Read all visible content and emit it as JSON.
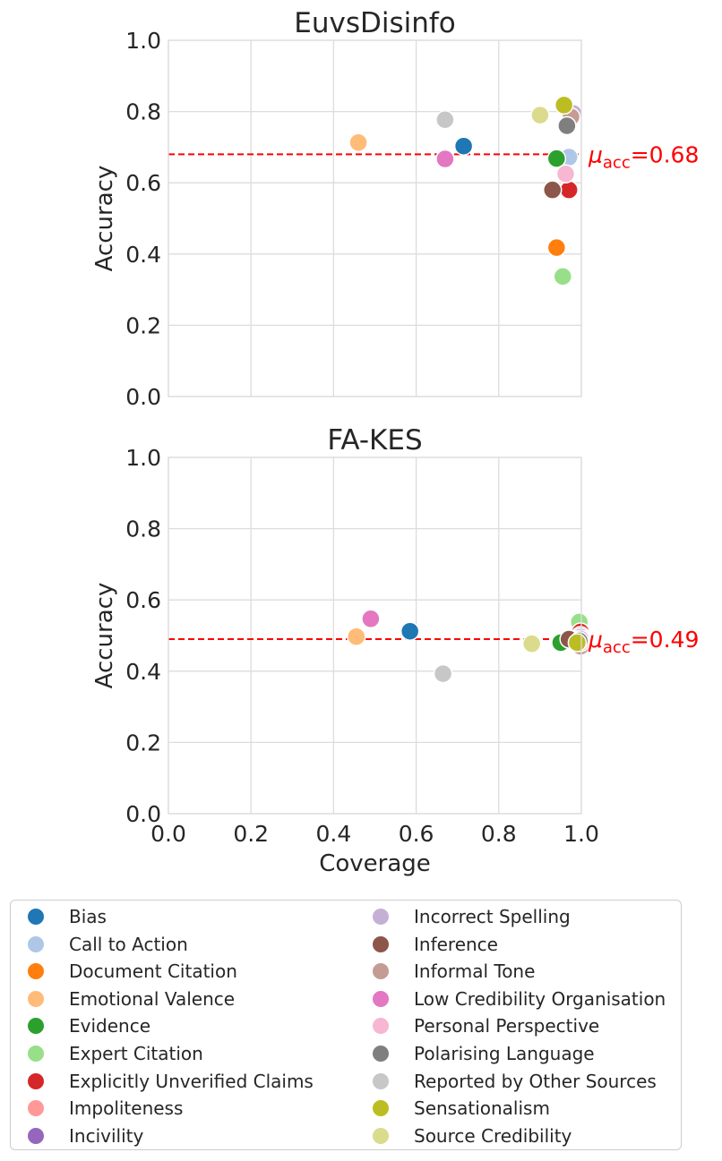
{
  "chart_data": [
    {
      "type": "scatter",
      "title": "EuvsDisinfo",
      "xlabel": "",
      "ylabel": "Accuracy",
      "xlim": [
        0.0,
        1.0
      ],
      "ylim": [
        0.0,
        1.0
      ],
      "yticks": [
        "0.0",
        "0.2",
        "0.4",
        "0.6",
        "0.8",
        "1.0"
      ],
      "xticks": [],
      "grid": true,
      "mean_line": {
        "value": 0.68,
        "label_prefix": "μ",
        "label_sub": "acc",
        "label_value": "=0.68",
        "color": "#ff0000"
      },
      "series": [
        {
          "name": "Bias",
          "x": 0.715,
          "y": 0.703
        },
        {
          "name": "Call to Action",
          "x": 0.97,
          "y": 0.672
        },
        {
          "name": "Document Citation",
          "x": 0.94,
          "y": 0.418
        },
        {
          "name": "Emotional Valence",
          "x": 0.46,
          "y": 0.713
        },
        {
          "name": "Evidence",
          "x": 0.94,
          "y": 0.668
        },
        {
          "name": "Expert Citation",
          "x": 0.955,
          "y": 0.337
        },
        {
          "name": "Explicitly Unverified Claims",
          "x": 0.97,
          "y": 0.58
        },
        {
          "name": "Impoliteness",
          "x": 0.98,
          "y": 0.79
        },
        {
          "name": "Incivility",
          "x": 0.975,
          "y": 0.78
        },
        {
          "name": "Incorrect Spelling",
          "x": 0.98,
          "y": 0.795
        },
        {
          "name": "Inference",
          "x": 0.93,
          "y": 0.58
        },
        {
          "name": "Informal Tone",
          "x": 0.975,
          "y": 0.785
        },
        {
          "name": "Low Credibility Organisation",
          "x": 0.67,
          "y": 0.667
        },
        {
          "name": "Personal Perspective",
          "x": 0.962,
          "y": 0.625
        },
        {
          "name": "Polarising Language",
          "x": 0.965,
          "y": 0.76
        },
        {
          "name": "Reported by Other Sources",
          "x": 0.67,
          "y": 0.777
        },
        {
          "name": "Sensationalism",
          "x": 0.958,
          "y": 0.818
        },
        {
          "name": "Source Credibility",
          "x": 0.9,
          "y": 0.79
        }
      ]
    },
    {
      "type": "scatter",
      "title": "FA-KES",
      "xlabel": "Coverage",
      "ylabel": "Accuracy",
      "xlim": [
        0.0,
        1.0
      ],
      "ylim": [
        0.0,
        1.0
      ],
      "yticks": [
        "0.0",
        "0.2",
        "0.4",
        "0.6",
        "0.8",
        "1.0"
      ],
      "xticks": [
        "0.0",
        "0.2",
        "0.4",
        "0.6",
        "0.8",
        "1.0"
      ],
      "grid": true,
      "mean_line": {
        "value": 0.49,
        "label_prefix": "μ",
        "label_sub": "acc",
        "label_value": "=0.49",
        "color": "#ff0000"
      },
      "series": [
        {
          "name": "Bias",
          "x": 0.585,
          "y": 0.512
        },
        {
          "name": "Call to Action",
          "x": 0.995,
          "y": 0.49
        },
        {
          "name": "Document Citation",
          "x": 0.99,
          "y": 0.5
        },
        {
          "name": "Emotional Valence",
          "x": 0.455,
          "y": 0.497
        },
        {
          "name": "Evidence",
          "x": 0.95,
          "y": 0.48
        },
        {
          "name": "Expert Citation",
          "x": 0.995,
          "y": 0.538
        },
        {
          "name": "Explicitly Unverified Claims",
          "x": 0.998,
          "y": 0.51
        },
        {
          "name": "Impoliteness",
          "x": 0.998,
          "y": 0.5
        },
        {
          "name": "Incivility",
          "x": 0.998,
          "y": 0.495
        },
        {
          "name": "Incorrect Spelling",
          "x": 0.998,
          "y": 0.49
        },
        {
          "name": "Inference",
          "x": 0.97,
          "y": 0.49
        },
        {
          "name": "Informal Tone",
          "x": 0.998,
          "y": 0.47
        },
        {
          "name": "Low Credibility Organisation",
          "x": 0.49,
          "y": 0.547
        },
        {
          "name": "Personal Perspective",
          "x": 0.998,
          "y": 0.48
        },
        {
          "name": "Polarising Language",
          "x": 0.995,
          "y": 0.485
        },
        {
          "name": "Reported by Other Sources",
          "x": 0.665,
          "y": 0.393
        },
        {
          "name": "Sensationalism",
          "x": 0.99,
          "y": 0.48
        },
        {
          "name": "Source Credibility",
          "x": 0.88,
          "y": 0.477
        }
      ]
    }
  ],
  "legend": {
    "placement": "bottom",
    "items": [
      {
        "label": "Bias",
        "color": "#1f77b4"
      },
      {
        "label": "Call to Action",
        "color": "#aec7e8"
      },
      {
        "label": "Document Citation",
        "color": "#ff7f0e"
      },
      {
        "label": "Emotional Valence",
        "color": "#ffbb78"
      },
      {
        "label": "Evidence",
        "color": "#2ca02c"
      },
      {
        "label": "Expert Citation",
        "color": "#98df8a"
      },
      {
        "label": "Explicitly Unverified Claims",
        "color": "#d62728"
      },
      {
        "label": "Impoliteness",
        "color": "#ff9896"
      },
      {
        "label": "Incivility",
        "color": "#9467bd"
      },
      {
        "label": "Incorrect Spelling",
        "color": "#c5b0d5"
      },
      {
        "label": "Inference",
        "color": "#8c564b"
      },
      {
        "label": "Informal Tone",
        "color": "#c49c94"
      },
      {
        "label": "Low Credibility Organisation",
        "color": "#e377c2"
      },
      {
        "label": "Personal Perspective",
        "color": "#f7b6d2"
      },
      {
        "label": "Polarising Language",
        "color": "#7f7f7f"
      },
      {
        "label": "Reported by Other Sources",
        "color": "#c7c7c7"
      },
      {
        "label": "Sensationalism",
        "color": "#bcbd22"
      },
      {
        "label": "Source Credibility",
        "color": "#dbdb8d"
      }
    ]
  }
}
